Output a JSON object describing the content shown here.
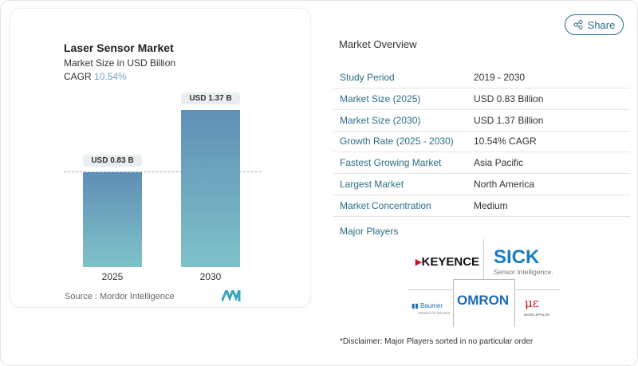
{
  "header": {
    "share_label": "Share"
  },
  "chart_card": {
    "title": "Laser Sensor Market",
    "subtitle": "Market Size in USD Billion",
    "cagr_label": "CAGR",
    "cagr_value": "10.54%",
    "source": "Source :  Mordor Intelligence"
  },
  "chart_data": {
    "type": "bar",
    "categories": [
      "2025",
      "2030"
    ],
    "values": [
      0.83,
      1.37
    ],
    "data_labels": [
      "USD 0.83 B",
      "USD 1.37 B"
    ],
    "title": "Laser Sensor Market",
    "ylabel": "Market Size in USD Billion",
    "colors": [
      "#5f8fb5",
      "#7fc2c9"
    ]
  },
  "overview": {
    "title": "Market Overview",
    "rows": [
      {
        "label": "Study Period",
        "value": "2019 - 2030"
      },
      {
        "label": "Market Size (2025)",
        "value": "USD 0.83 Billion"
      },
      {
        "label": "Market Size (2030)",
        "value": "USD 1.37 Billion"
      },
      {
        "label": "Growth Rate (2025 - 2030)",
        "value": "10.54% CAGR"
      },
      {
        "label": "Fastest Growing Market",
        "value": "Asia Pacific"
      },
      {
        "label": "Largest Market",
        "value": "North America"
      },
      {
        "label": "Market Concentration",
        "value": "Medium"
      }
    ],
    "major_players_label": "Major Players",
    "players": [
      "KEYENCE",
      "SICK",
      "Sensor Intelligence.",
      "OMRON",
      "Baumer",
      "Passion for Sensors",
      "MICRO-EPSILON"
    ],
    "disclaimer": "*Disclaimer: Major Players sorted in no particular order"
  }
}
